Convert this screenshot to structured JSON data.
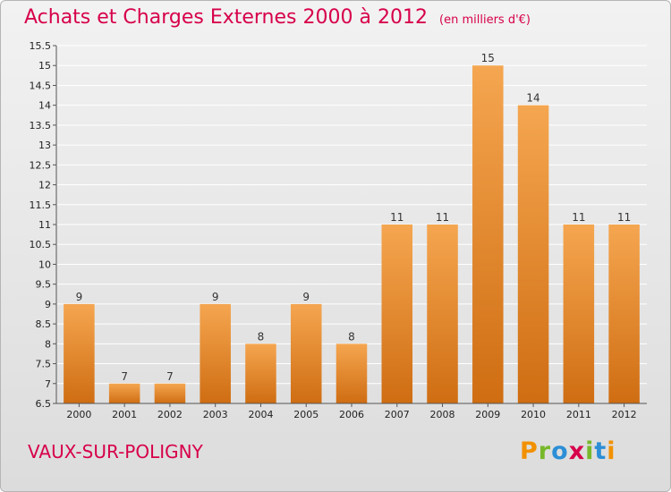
{
  "title": "Achats et Charges Externes 2000 à 2012",
  "unit_note": "(en milliers d'€)",
  "commune": "VAUX-SUR-POLIGNY",
  "brand": {
    "letters": [
      "P",
      "r",
      "o",
      "x",
      "i",
      "t",
      "i"
    ],
    "colors": [
      "#f29100",
      "#76b82a",
      "#2c8ed6",
      "#d7004b",
      "#76b82a",
      "#2c8ed6",
      "#f29100"
    ]
  },
  "colors": {
    "bar_top": "#f5a650",
    "bar_bottom": "#cf6d12",
    "title": "#d7004b",
    "grid": "#ffffff"
  },
  "chart_data": {
    "type": "bar",
    "title": "Achats et Charges Externes 2000 à 2012",
    "categories": [
      "2000",
      "2001",
      "2002",
      "2003",
      "2004",
      "2005",
      "2006",
      "2007",
      "2008",
      "2009",
      "2010",
      "2011",
      "2012"
    ],
    "values": [
      9,
      7,
      7,
      9,
      8,
      9,
      8,
      11,
      11,
      15,
      14,
      11,
      11
    ],
    "ylim": [
      6.5,
      15.5
    ],
    "yticks": [
      6.5,
      7,
      7.5,
      8,
      8.5,
      9,
      9.5,
      10,
      10.5,
      11,
      11.5,
      12,
      12.5,
      13,
      13.5,
      14,
      14.5,
      15,
      15.5
    ],
    "ytick_labels": [
      "6.5",
      "7",
      "7.5",
      "8",
      "8.5",
      "9",
      "9.5",
      "10",
      "10.5",
      "11",
      "11.5",
      "12",
      "12.5",
      "13",
      "13.5",
      "14",
      "14.5",
      "15",
      "15.5"
    ],
    "grid": true,
    "xlabel": "",
    "ylabel": ""
  }
}
